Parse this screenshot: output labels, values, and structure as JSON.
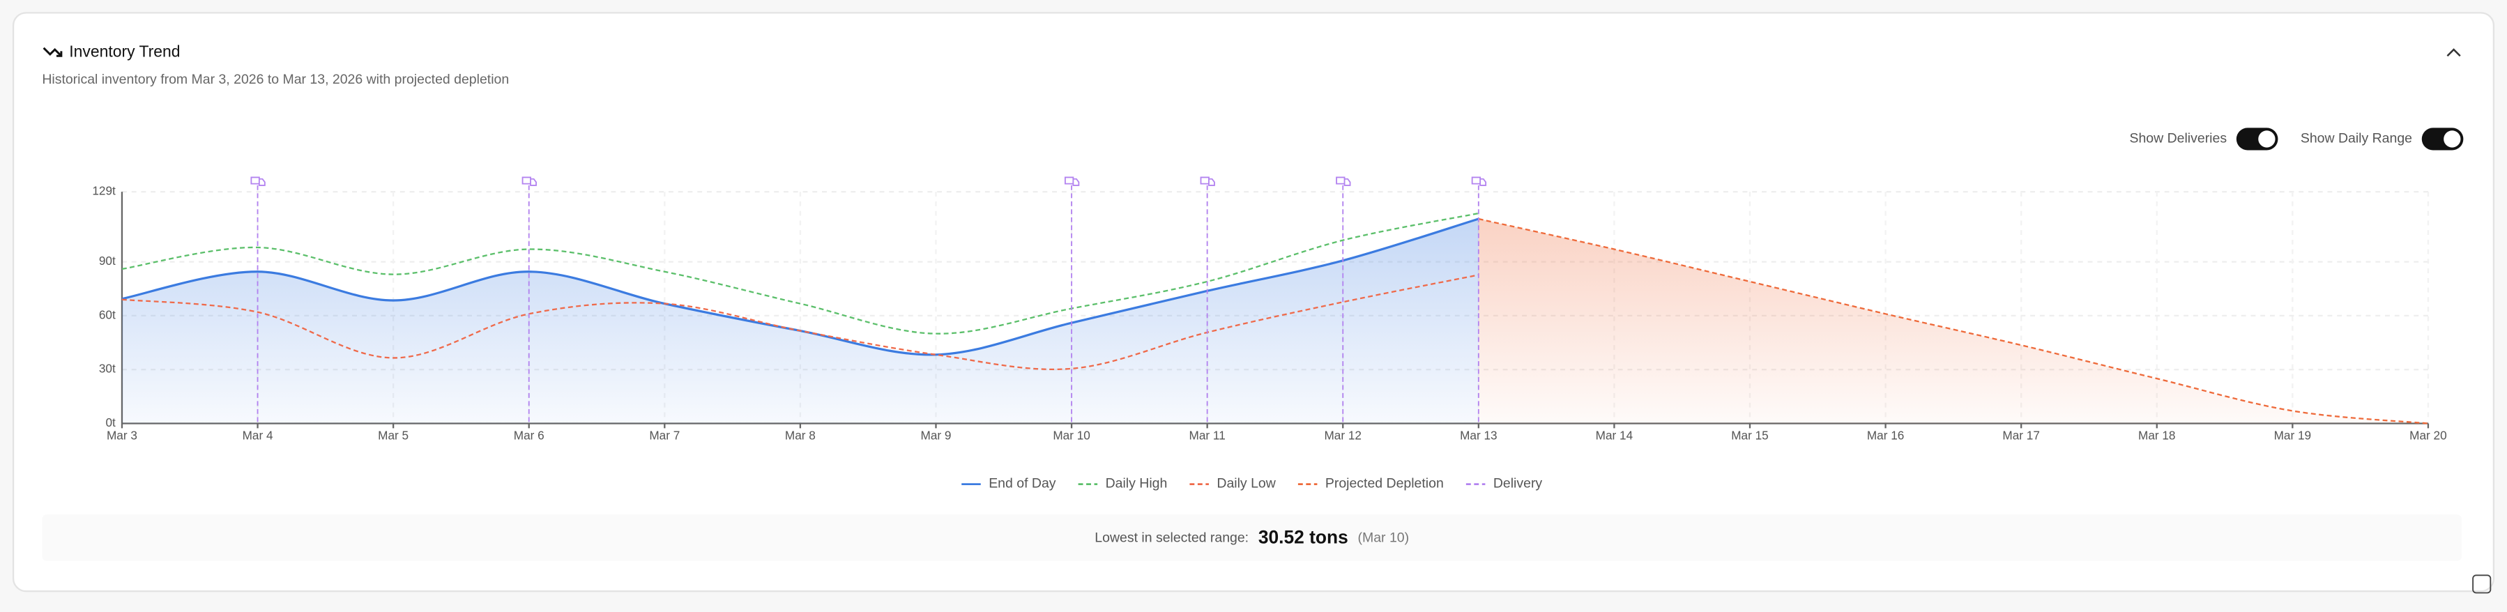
{
  "ui": {
    "title": "Inventory Trend",
    "subtitle": "Historical inventory from Mar 3, 2026 to Mar 13, 2026 with projected depletion",
    "toggles": [
      {
        "label": "Show Deliveries",
        "on": true
      },
      {
        "label": "Show Daily Range",
        "on": true
      }
    ],
    "footer": {
      "label": "Lowest in selected range:",
      "value": "30.52 tons",
      "date": "(Mar 10)"
    }
  },
  "chart_data": {
    "type": "line",
    "x": [
      "Mar 3",
      "Mar 4",
      "Mar 5",
      "Mar 6",
      "Mar 7",
      "Mar 8",
      "Mar 9",
      "Mar 10",
      "Mar 11",
      "Mar 12",
      "Mar 13",
      "Mar 14",
      "Mar 15",
      "Mar 16",
      "Mar 17",
      "Mar 18",
      "Mar 19",
      "Mar 20"
    ],
    "ylim": [
      0,
      129
    ],
    "yticks": [
      {
        "value": 0,
        "label": "0t"
      },
      {
        "value": 30,
        "label": "30t"
      },
      {
        "value": 60,
        "label": "60t"
      },
      {
        "value": 90,
        "label": "90t"
      },
      {
        "value": 129,
        "label": "129t"
      }
    ],
    "grid": true,
    "series": [
      {
        "name": "End of Day",
        "color": "#3b7be0",
        "dashed": false,
        "fill": true,
        "values": [
          69.4,
          84.5,
          68.5,
          84.5,
          66.7,
          51.6,
          38.3,
          56,
          73.8,
          90.7,
          113.9,
          null,
          null,
          null,
          null,
          null,
          null,
          null
        ]
      },
      {
        "name": "Daily High",
        "color": "#5bbf6a",
        "dashed": true,
        "fill": false,
        "values": [
          86,
          98,
          83,
          97,
          84.5,
          66.7,
          50,
          64,
          79,
          102,
          117,
          null,
          null,
          null,
          null,
          null,
          null,
          null
        ]
      },
      {
        "name": "Daily Low",
        "color": "#ef6a4a",
        "dashed": true,
        "fill": false,
        "values": [
          69,
          62,
          36.5,
          61,
          66.7,
          51.6,
          38.3,
          30.52,
          50.7,
          67.6,
          82.7,
          null,
          null,
          null,
          null,
          null,
          null,
          null
        ]
      },
      {
        "name": "Projected Depletion",
        "color": "#ee6a3a",
        "dashed": true,
        "fill": true,
        "values": [
          null,
          null,
          null,
          null,
          null,
          null,
          null,
          null,
          null,
          null,
          113.9,
          97,
          79,
          61,
          43.6,
          25,
          7,
          0
        ]
      }
    ],
    "deliveries": {
      "name": "Delivery",
      "color": "#b383f0",
      "x": [
        "Mar 4",
        "Mar 6",
        "Mar 10",
        "Mar 11",
        "Mar 12",
        "Mar 13"
      ]
    }
  }
}
